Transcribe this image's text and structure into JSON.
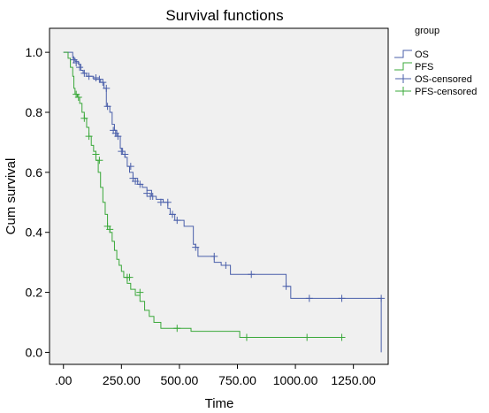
{
  "chart_data": {
    "type": "line",
    "title": "Survival functions",
    "xlabel": "Time",
    "ylabel": "Cum survival",
    "xlim": [
      -60,
      1400
    ],
    "ylim": [
      -0.04,
      1.08
    ],
    "x_ticks": [
      0,
      250,
      500,
      750,
      1000,
      1250
    ],
    "x_tick_labels": [
      ".00",
      "250.00",
      "500.00",
      "750.00",
      "1000.00",
      "1250.00"
    ],
    "y_ticks": [
      0.0,
      0.2,
      0.4,
      0.6,
      0.8,
      1.0
    ],
    "y_tick_labels": [
      "0.0",
      "0.2",
      "0.4",
      "0.6",
      "0.8",
      "1.0"
    ],
    "grid": false,
    "legend_position": "top-right",
    "legend_title": "group",
    "plot_background": "#f0f0f0",
    "series": [
      {
        "name": "OS",
        "color": "#4a5faa",
        "steps": [
          [
            0,
            1.0
          ],
          [
            40,
            0.98
          ],
          [
            50,
            0.97
          ],
          [
            65,
            0.96
          ],
          [
            75,
            0.94
          ],
          [
            85,
            0.93
          ],
          [
            100,
            0.92
          ],
          [
            130,
            0.91
          ],
          [
            150,
            0.91
          ],
          [
            160,
            0.9
          ],
          [
            175,
            0.88
          ],
          [
            185,
            0.82
          ],
          [
            200,
            0.8
          ],
          [
            210,
            0.76
          ],
          [
            220,
            0.74
          ],
          [
            230,
            0.72
          ],
          [
            245,
            0.68
          ],
          [
            255,
            0.66
          ],
          [
            265,
            0.65
          ],
          [
            275,
            0.62
          ],
          [
            285,
            0.6
          ],
          [
            300,
            0.58
          ],
          [
            320,
            0.56
          ],
          [
            340,
            0.55
          ],
          [
            360,
            0.54
          ],
          [
            380,
            0.52
          ],
          [
            400,
            0.51
          ],
          [
            430,
            0.5
          ],
          [
            450,
            0.48
          ],
          [
            460,
            0.46
          ],
          [
            480,
            0.44
          ],
          [
            520,
            0.42
          ],
          [
            560,
            0.36
          ],
          [
            570,
            0.35
          ],
          [
            580,
            0.32
          ],
          [
            650,
            0.3
          ],
          [
            680,
            0.29
          ],
          [
            720,
            0.26
          ],
          [
            960,
            0.22
          ],
          [
            980,
            0.18
          ],
          [
            1370,
            0.18
          ],
          [
            1370,
            0.0
          ]
        ]
      },
      {
        "name": "PFS",
        "color": "#3aa83a",
        "steps": [
          [
            0,
            1.0
          ],
          [
            20,
            0.98
          ],
          [
            30,
            0.95
          ],
          [
            40,
            0.92
          ],
          [
            45,
            0.88
          ],
          [
            50,
            0.86
          ],
          [
            60,
            0.85
          ],
          [
            70,
            0.83
          ],
          [
            80,
            0.8
          ],
          [
            90,
            0.78
          ],
          [
            100,
            0.75
          ],
          [
            110,
            0.72
          ],
          [
            120,
            0.69
          ],
          [
            130,
            0.67
          ],
          [
            140,
            0.64
          ],
          [
            150,
            0.6
          ],
          [
            160,
            0.55
          ],
          [
            170,
            0.5
          ],
          [
            180,
            0.46
          ],
          [
            190,
            0.42
          ],
          [
            200,
            0.4
          ],
          [
            210,
            0.37
          ],
          [
            220,
            0.34
          ],
          [
            230,
            0.31
          ],
          [
            240,
            0.29
          ],
          [
            250,
            0.27
          ],
          [
            260,
            0.25
          ],
          [
            275,
            0.23
          ],
          [
            290,
            0.21
          ],
          [
            310,
            0.19
          ],
          [
            330,
            0.17
          ],
          [
            350,
            0.14
          ],
          [
            370,
            0.12
          ],
          [
            390,
            0.1
          ],
          [
            420,
            0.08
          ],
          [
            550,
            0.07
          ],
          [
            760,
            0.05
          ],
          [
            1200,
            0.05
          ]
        ]
      }
    ],
    "censored": [
      {
        "name": "OS-censored",
        "color": "#4a5faa",
        "points": [
          [
            45,
            0.975
          ],
          [
            55,
            0.965
          ],
          [
            70,
            0.95
          ],
          [
            90,
            0.93
          ],
          [
            110,
            0.92
          ],
          [
            140,
            0.915
          ],
          [
            155,
            0.91
          ],
          [
            170,
            0.9
          ],
          [
            185,
            0.88
          ],
          [
            190,
            0.82
          ],
          [
            215,
            0.74
          ],
          [
            225,
            0.73
          ],
          [
            235,
            0.72
          ],
          [
            250,
            0.67
          ],
          [
            265,
            0.66
          ],
          [
            290,
            0.62
          ],
          [
            300,
            0.58
          ],
          [
            310,
            0.57
          ],
          [
            330,
            0.56
          ],
          [
            360,
            0.53
          ],
          [
            375,
            0.52
          ],
          [
            385,
            0.52
          ],
          [
            420,
            0.5
          ],
          [
            450,
            0.5
          ],
          [
            470,
            0.46
          ],
          [
            490,
            0.44
          ],
          [
            570,
            0.35
          ],
          [
            650,
            0.32
          ],
          [
            700,
            0.29
          ],
          [
            810,
            0.26
          ],
          [
            960,
            0.22
          ],
          [
            1060,
            0.18
          ],
          [
            1200,
            0.18
          ],
          [
            1370,
            0.18
          ]
        ]
      },
      {
        "name": "PFS-censored",
        "color": "#3aa83a",
        "points": [
          [
            55,
            0.86
          ],
          [
            65,
            0.85
          ],
          [
            90,
            0.78
          ],
          [
            110,
            0.72
          ],
          [
            140,
            0.66
          ],
          [
            155,
            0.64
          ],
          [
            190,
            0.42
          ],
          [
            200,
            0.41
          ],
          [
            275,
            0.25
          ],
          [
            285,
            0.25
          ],
          [
            330,
            0.2
          ],
          [
            490,
            0.08
          ],
          [
            790,
            0.05
          ],
          [
            1050,
            0.05
          ],
          [
            1200,
            0.05
          ]
        ]
      }
    ]
  }
}
